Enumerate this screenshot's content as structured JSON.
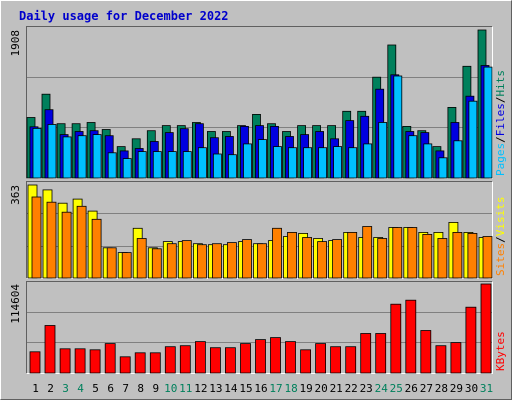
{
  "title": "Daily usage for December 2022",
  "legend_separator": "/",
  "chart_data": [
    {
      "type": "bar",
      "series": [
        {
          "name": "Hits",
          "color": "#00805c",
          "values": [
            780,
            1080,
            700,
            700,
            715,
            625,
            405,
            505,
            610,
            675,
            675,
            715,
            600,
            600,
            675,
            820,
            700,
            600,
            675,
            675,
            675,
            860,
            860,
            1300,
            1715,
            665,
            610,
            405,
            910,
            1440,
            1908
          ]
        },
        {
          "name": "Files",
          "color": "#0000e0",
          "values": [
            660,
            880,
            560,
            600,
            610,
            545,
            350,
            380,
            470,
            585,
            635,
            700,
            520,
            535,
            665,
            675,
            665,
            535,
            560,
            600,
            505,
            740,
            795,
            1145,
            1330,
            600,
            585,
            350,
            715,
            1055,
            1450
          ]
        },
        {
          "name": "Pages",
          "color": "#00c0ff",
          "values": [
            640,
            690,
            530,
            545,
            560,
            325,
            250,
            340,
            340,
            340,
            340,
            390,
            310,
            300,
            440,
            495,
            405,
            390,
            390,
            390,
            405,
            390,
            440,
            715,
            1315,
            545,
            440,
            260,
            480,
            990,
            1430
          ]
        }
      ],
      "ylim": [
        0,
        1908
      ],
      "yticks": [
        1908
      ]
    },
    {
      "type": "bar",
      "series": [
        {
          "name": "Visits",
          "color": "#ffff00",
          "values": [
            363,
            344,
            292,
            308,
            261,
            118,
            99,
            194,
            118,
            142,
            142,
            134,
            130,
            130,
            142,
            134,
            146,
            162,
            174,
            154,
            146,
            178,
            158,
            158,
            197,
            197,
            178,
            178,
            217,
            178,
            158
          ]
        },
        {
          "name": "Sites",
          "color": "#ff8000",
          "values": [
            316,
            296,
            257,
            280,
            229,
            118,
            99,
            154,
            114,
            134,
            146,
            130,
            134,
            138,
            150,
            134,
            194,
            178,
            158,
            142,
            150,
            178,
            201,
            154,
            197,
            197,
            170,
            154,
            178,
            174,
            162
          ]
        }
      ],
      "ylim": [
        0,
        363
      ],
      "yticks": [
        363
      ]
    },
    {
      "type": "bar",
      "categories": [
        "1",
        "2",
        "3",
        "4",
        "5",
        "6",
        "7",
        "8",
        "9",
        "10",
        "11",
        "12",
        "13",
        "14",
        "15",
        "16",
        "17",
        "18",
        "19",
        "20",
        "21",
        "22",
        "23",
        "24",
        "25",
        "26",
        "27",
        "28",
        "29",
        "30",
        "31"
      ],
      "category_colors": [
        "#000000",
        "#000000",
        "#00805c",
        "#00805c",
        "#000000",
        "#000000",
        "#000000",
        "#000000",
        "#000000",
        "#00805c",
        "#00805c",
        "#000000",
        "#000000",
        "#000000",
        "#000000",
        "#000000",
        "#00805c",
        "#00805c",
        "#000000",
        "#000000",
        "#000000",
        "#000000",
        "#000000",
        "#00805c",
        "#00805c",
        "#000000",
        "#000000",
        "#000000",
        "#000000",
        "#000000",
        "#00805c"
      ],
      "series": [
        {
          "name": "KBytes",
          "color": "#ff0000",
          "values": [
            27300,
            61200,
            31200,
            31200,
            29900,
            37800,
            20800,
            26000,
            26000,
            33900,
            35200,
            40400,
            32600,
            32600,
            37800,
            43000,
            45600,
            40400,
            29900,
            37800,
            33900,
            33900,
            50800,
            50800,
            88600,
            93800,
            54700,
            35200,
            39100,
            84700,
            114604
          ]
        }
      ],
      "ylim": [
        0,
        114604
      ],
      "yticks": [
        114604
      ]
    }
  ]
}
